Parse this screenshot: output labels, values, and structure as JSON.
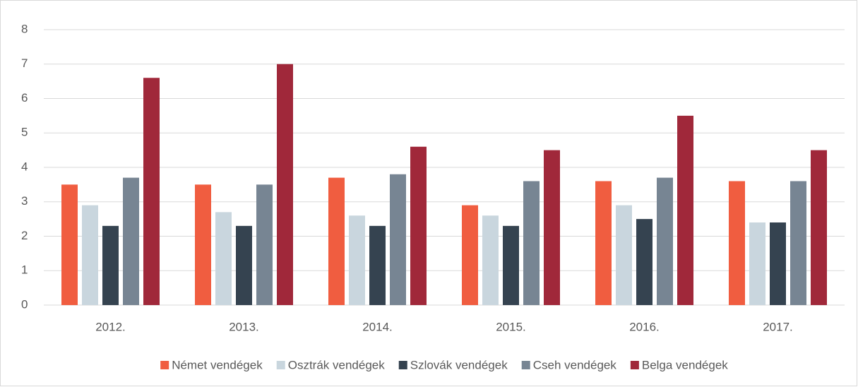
{
  "chart_data": {
    "type": "bar",
    "categories": [
      "2012.",
      "2013.",
      "2014.",
      "2015.",
      "2016.",
      "2017."
    ],
    "series": [
      {
        "name": "Német vendégek",
        "color": "#f05d40",
        "values": [
          3.5,
          3.5,
          3.7,
          2.9,
          3.6,
          3.6
        ]
      },
      {
        "name": "Osztrák vendégek",
        "color": "#c9d6de",
        "values": [
          2.9,
          2.7,
          2.6,
          2.6,
          2.9,
          2.4
        ]
      },
      {
        "name": "Szlovák vendégek",
        "color": "#354350",
        "values": [
          2.3,
          2.3,
          2.3,
          2.3,
          2.5,
          2.4
        ]
      },
      {
        "name": "Cseh vendégek",
        "color": "#778593",
        "values": [
          3.7,
          3.5,
          3.8,
          3.6,
          3.7,
          3.6
        ]
      },
      {
        "name": "Belga vendégek",
        "color": "#a0283a",
        "values": [
          6.6,
          7.0,
          4.6,
          4.5,
          5.5,
          4.5
        ]
      }
    ],
    "ylim": [
      0,
      8
    ],
    "yticks": [
      0,
      1,
      2,
      3,
      4,
      5,
      6,
      7,
      8
    ],
    "grid": true,
    "legend": "bottom"
  }
}
